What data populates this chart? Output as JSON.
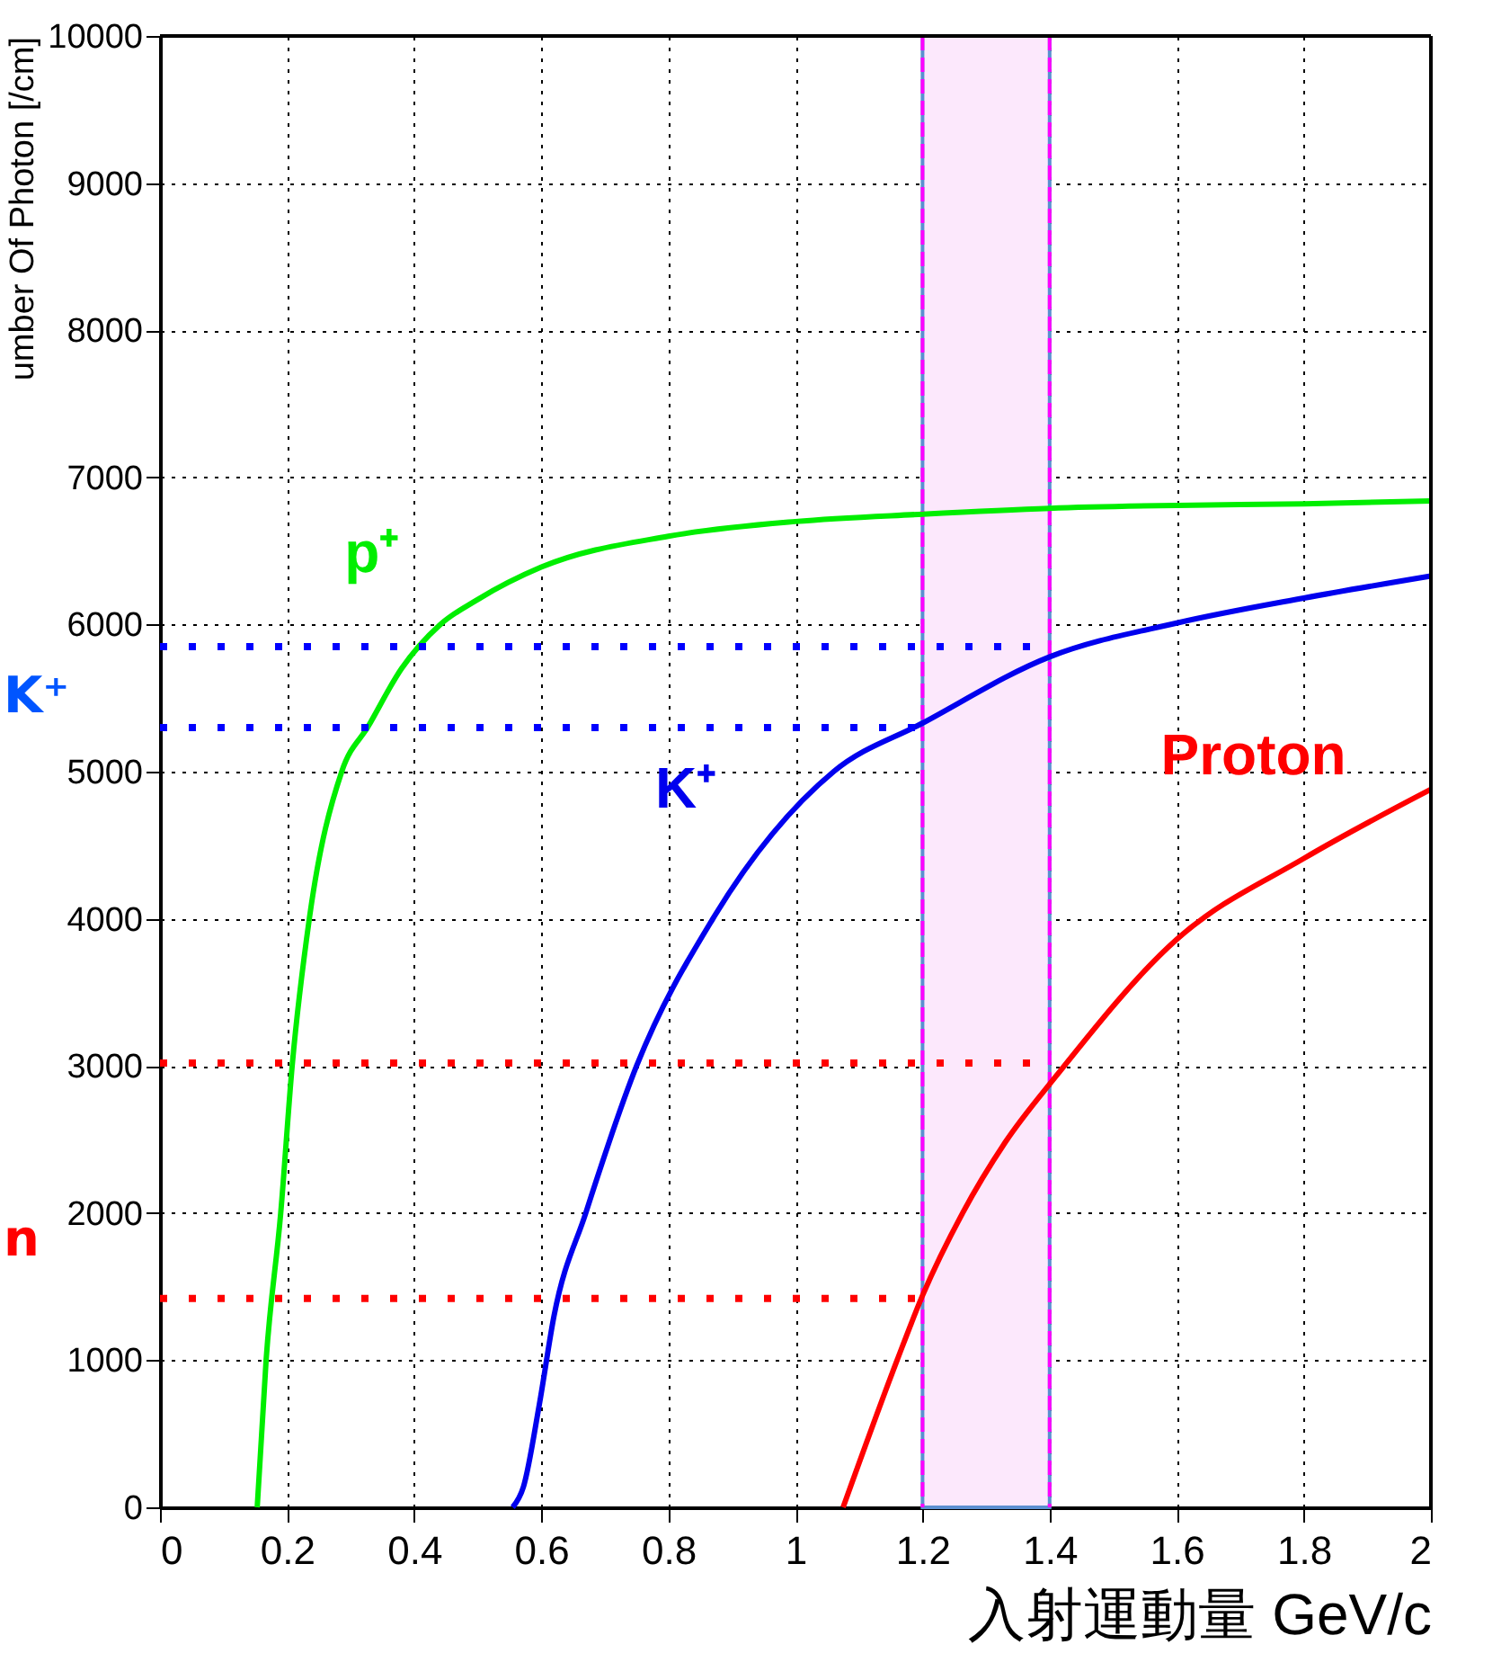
{
  "chart_data": {
    "type": "line",
    "xlabel": "入射運動量 GeV/c",
    "ylabel": "umber Of Photon [/cm]",
    "xlim": [
      0,
      2
    ],
    "xticks": [
      0,
      0.2,
      0.4,
      0.6,
      0.8,
      1,
      1.2,
      1.4,
      1.6,
      1.8,
      2
    ],
    "ylim": [
      0,
      10000
    ],
    "yticks": [
      0,
      1000,
      2000,
      3000,
      4000,
      5000,
      6000,
      7000,
      8000,
      9000,
      10000
    ],
    "grid": true,
    "line_style": "solid",
    "series": [
      {
        "name": "p⁺",
        "color": "#00ee00",
        "x": [
          0.153,
          0.167,
          0.19,
          0.208,
          0.235,
          0.286,
          0.328,
          0.38,
          0.441,
          0.5,
          0.6,
          0.8,
          1.0,
          1.2,
          1.4,
          1.6,
          1.8,
          2.0
        ],
        "values": [
          0,
          1000,
          2000,
          3000,
          4000,
          5000,
          5310,
          5700,
          6000,
          6170,
          6390,
          6600,
          6700,
          6750,
          6790,
          6810,
          6820,
          6840
        ]
      },
      {
        "name": "K⁺",
        "color": "#0000ee",
        "x": [
          0.555,
          0.572,
          0.597,
          0.62,
          0.67,
          0.75,
          0.87,
          1.06,
          1.2,
          1.4,
          1.6,
          1.8,
          2.0
        ],
        "values": [
          0,
          140,
          700,
          1300,
          2000,
          3000,
          4000,
          5000,
          5330,
          5780,
          6010,
          6180,
          6330
        ]
      },
      {
        "name": "Proton",
        "color": "#ff0000",
        "x": [
          1.075,
          1.16,
          1.2,
          1.263,
          1.33,
          1.41,
          1.6,
          1.8,
          2.0
        ],
        "values": [
          0,
          1000,
          1440,
          2000,
          2480,
          2930,
          3860,
          4410,
          4880
        ]
      },
      {
        "color": "#0000ff",
        "line_style": "dotted",
        "x": [
          0,
          1.4
        ],
        "values": [
          5850,
          5850
        ]
      },
      {
        "color": "#0000ff",
        "line_style": "dotted",
        "x": [
          0,
          1.2
        ],
        "values": [
          5300,
          5300
        ]
      },
      {
        "color": "#ff0000",
        "line_style": "dotted",
        "x": [
          0,
          1.4
        ],
        "values": [
          3020,
          3020
        ]
      },
      {
        "color": "#ff0000",
        "line_style": "dotted",
        "x": [
          0,
          1.2
        ],
        "values": [
          1420,
          1420
        ]
      }
    ],
    "bands": [
      {
        "axis": "x",
        "from": 1.2,
        "to": 1.4,
        "color": "#fce8fc"
      }
    ],
    "annotations": [
      "K⁺",
      "n"
    ]
  }
}
